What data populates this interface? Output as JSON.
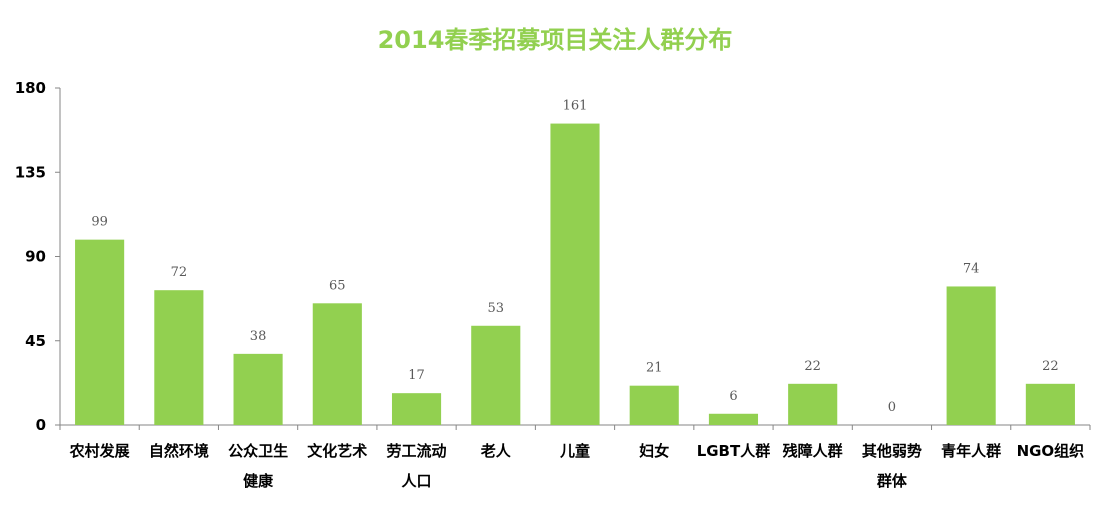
{
  "chart_data": {
    "type": "bar",
    "title": "2014春季招募项目关注人群分布",
    "xlabel": "",
    "ylabel": "",
    "ylim": [
      0,
      180
    ],
    "yticks": [
      0,
      45,
      90,
      135,
      180
    ],
    "grid": false,
    "legend": "none",
    "categories": [
      [
        "农村发展"
      ],
      [
        "自然环境"
      ],
      [
        "公众卫生",
        "健康"
      ],
      [
        "文化艺术"
      ],
      [
        "劳工流动",
        "人口"
      ],
      [
        "老人"
      ],
      [
        "儿童"
      ],
      [
        "妇女"
      ],
      [
        "LGBT人群"
      ],
      [
        "残障人群"
      ],
      [
        "其他弱势",
        "群体"
      ],
      [
        "青年人群"
      ],
      [
        "NGO组织"
      ]
    ],
    "values": [
      99,
      72,
      38,
      65,
      17,
      53,
      161,
      21,
      6,
      22,
      0,
      74,
      22
    ],
    "data_labels": [
      "99",
      "72",
      "38",
      "65",
      "17",
      "53",
      "161",
      "21",
      "6",
      "22",
      "0",
      "74",
      "22"
    ],
    "colors": {
      "bar": "#92d050",
      "title": "#92d050",
      "axis": "#868686",
      "data_label": "#595959"
    }
  }
}
